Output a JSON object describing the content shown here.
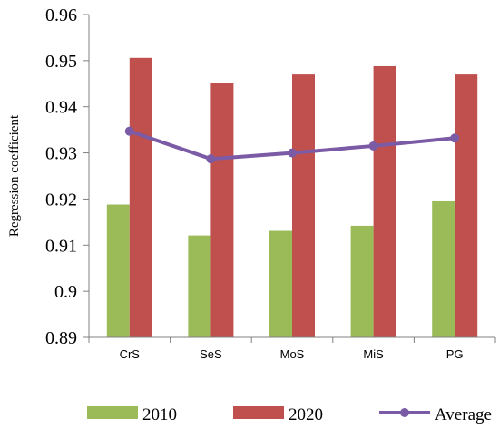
{
  "chart_data": {
    "type": "bar",
    "categories": [
      "CrS",
      "SeS",
      "MoS",
      "MiS",
      "PG"
    ],
    "series": [
      {
        "name": "2010",
        "type": "bar",
        "color": "#9BBB59",
        "values": [
          0.9188,
          0.9121,
          0.9131,
          0.9142,
          0.9195
        ]
      },
      {
        "name": "2020",
        "type": "bar",
        "color": "#C0504D",
        "values": [
          0.9506,
          0.9452,
          0.947,
          0.9488,
          0.947
        ]
      },
      {
        "name": "Average",
        "type": "line",
        "color": "#7B5BA6",
        "marker": "circle",
        "values": [
          0.9347,
          0.9287,
          0.93,
          0.9315,
          0.9332
        ]
      }
    ],
    "ylabel": "Regression coefficient",
    "xlabel": "",
    "ylim": [
      0.89,
      0.96
    ],
    "yticks": [
      "0.89",
      "0.9",
      "0.91",
      "0.92",
      "0.93",
      "0.94",
      "0.95",
      "0.96"
    ],
    "grid": false,
    "legend": "bottom"
  }
}
